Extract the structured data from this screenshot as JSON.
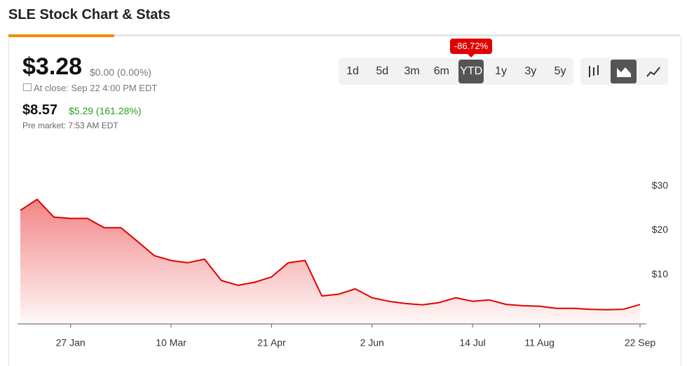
{
  "header": {
    "title": "SLE Stock Chart & Stats"
  },
  "quote": {
    "price": "$3.28",
    "change": "$0.00 (0.00%)",
    "close_time": "At close: Sep 22 4:00 PM EDT",
    "pre_price": "$8.57",
    "pre_change": "$5.29 (161.28%)",
    "pre_time": "Pre market: 7:53 AM EDT"
  },
  "periods": [
    {
      "label": "1d",
      "selected": false
    },
    {
      "label": "5d",
      "selected": false
    },
    {
      "label": "3m",
      "selected": false
    },
    {
      "label": "6m",
      "selected": false
    },
    {
      "label": "YTD",
      "selected": true
    },
    {
      "label": "1y",
      "selected": false
    },
    {
      "label": "3y",
      "selected": false
    },
    {
      "label": "5y",
      "selected": false
    }
  ],
  "period_change": "-86.72%",
  "chart_data": {
    "type": "area",
    "color": "#e00000",
    "categories": [
      null,
      null,
      null,
      "27 Jan",
      null,
      null,
      null,
      null,
      null,
      "10 Mar",
      null,
      null,
      null,
      null,
      null,
      "21 Apr",
      null,
      null,
      null,
      null,
      null,
      "2 Jun",
      null,
      null,
      null,
      null,
      null,
      "14 Jul",
      null,
      null,
      null,
      "11 Aug",
      null,
      null,
      null,
      null,
      null,
      "22 Sep"
    ],
    "values": [
      24.5,
      27,
      23,
      22.7,
      22.7,
      20.6,
      20.6,
      17.5,
      14.3,
      13.2,
      12.7,
      13.5,
      8.7,
      7.6,
      8.3,
      9.5,
      12.7,
      13.2,
      5.2,
      5.6,
      6.8,
      4.8,
      4.0,
      3.5,
      3.2,
      3.7,
      4.8,
      4.0,
      4.3,
      3.3,
      3.0,
      2.9,
      2.4,
      2.4,
      2.2,
      2.1,
      2.2,
      3.28
    ],
    "ylim": [
      0,
      34
    ],
    "yticks": [
      {
        "value": 10,
        "label": "$10"
      },
      {
        "value": 20,
        "label": "$20"
      },
      {
        "value": 30,
        "label": "$30"
      }
    ]
  }
}
